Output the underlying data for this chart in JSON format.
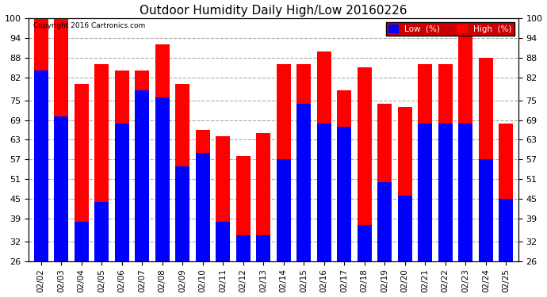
{
  "title": "Outdoor Humidity Daily High/Low 20160226",
  "copyright": "Copyright 2016 Cartronics.com",
  "dates": [
    "02/02",
    "02/03",
    "02/04",
    "02/05",
    "02/06",
    "02/07",
    "02/08",
    "02/09",
    "02/10",
    "02/11",
    "02/12",
    "02/13",
    "02/14",
    "02/15",
    "02/16",
    "02/17",
    "02/18",
    "02/19",
    "02/20",
    "02/21",
    "02/22",
    "02/23",
    "02/24",
    "02/25"
  ],
  "high": [
    100,
    100,
    80,
    86,
    84,
    84,
    92,
    80,
    66,
    64,
    58,
    65,
    86,
    86,
    90,
    78,
    85,
    74,
    73,
    86,
    86,
    95,
    88,
    68
  ],
  "low": [
    84,
    70,
    38,
    44,
    68,
    78,
    76,
    55,
    59,
    38,
    34,
    34,
    57,
    74,
    68,
    67,
    37,
    50,
    46,
    68,
    68,
    68,
    57,
    45
  ],
  "ylim": [
    26,
    100
  ],
  "yticks": [
    26,
    32,
    39,
    45,
    51,
    57,
    63,
    69,
    75,
    82,
    88,
    94,
    100
  ],
  "high_color": "#ff0000",
  "low_color": "#0000ff",
  "bg_color": "#ffffff",
  "grid_color": "#aaaaaa",
  "bar_width": 0.7,
  "title_fontsize": 11,
  "legend_high": "High  (%)",
  "legend_low": "Low  (%)"
}
